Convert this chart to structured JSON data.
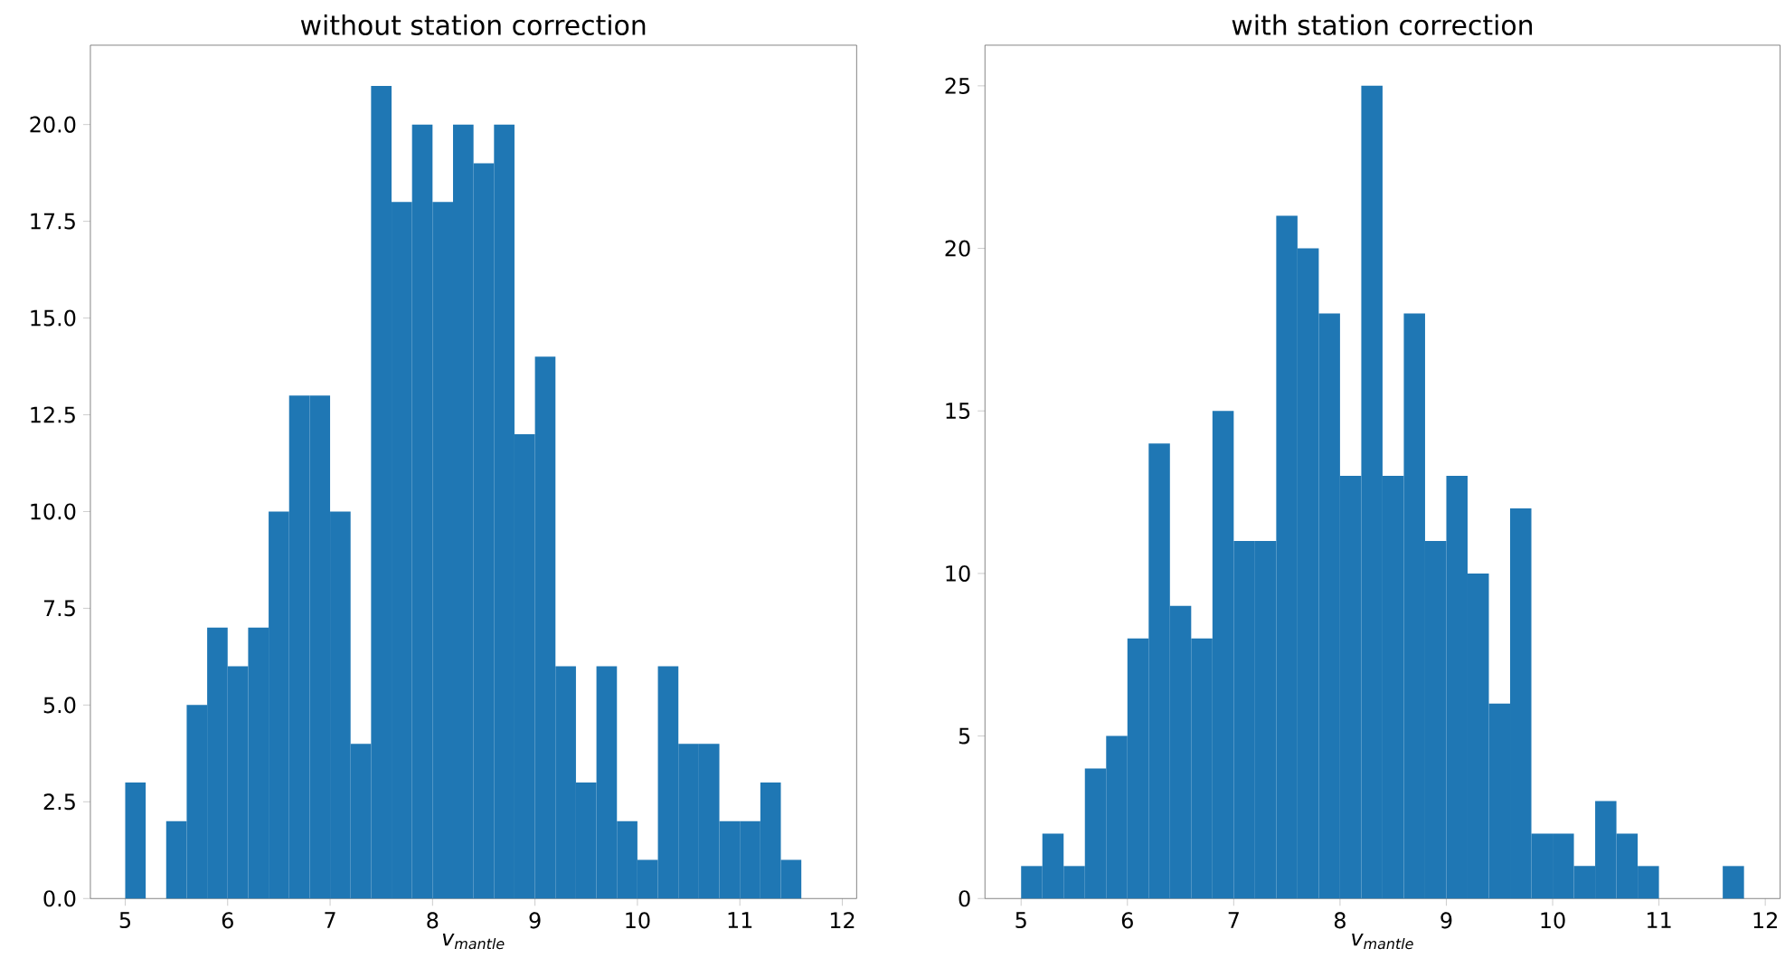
{
  "chart_data": [
    {
      "type": "histogram",
      "title": "without station correction",
      "xlabel": "v$_{mantle}$",
      "color": "#1f77b4",
      "bins": [
        5.0,
        5.2,
        5.4,
        5.6,
        5.8,
        6.0,
        6.2,
        6.4,
        6.6,
        6.8,
        7.0,
        7.2,
        7.4,
        7.6,
        7.8,
        8.0,
        8.2,
        8.4,
        8.6,
        8.8,
        9.0,
        9.2,
        9.4,
        9.6,
        9.8,
        10.0,
        10.2,
        10.4,
        10.6,
        10.8,
        11.0,
        11.2,
        11.4,
        11.6,
        11.8
      ],
      "values": [
        3,
        0,
        2,
        5,
        7,
        6,
        7,
        10,
        13,
        13,
        10,
        4,
        21,
        18,
        20,
        18,
        20,
        19,
        20,
        12,
        14,
        6,
        3,
        6,
        2,
        1,
        6,
        4,
        4,
        2,
        2,
        3,
        1,
        0
      ],
      "xlim": [
        4.66,
        12.14
      ],
      "ylim": [
        0,
        22.05
      ],
      "xticks": [
        5,
        6,
        7,
        8,
        9,
        10,
        11,
        12
      ],
      "yticks": [
        {
          "value": 0,
          "label": "0.0"
        },
        {
          "value": 2.5,
          "label": "2.5"
        },
        {
          "value": 5,
          "label": "5.0"
        },
        {
          "value": 7.5,
          "label": "7.5"
        },
        {
          "value": 10,
          "label": "10.0"
        },
        {
          "value": 12.5,
          "label": "12.5"
        },
        {
          "value": 15,
          "label": "15.0"
        },
        {
          "value": 17.5,
          "label": "17.5"
        },
        {
          "value": 20,
          "label": "20.0"
        }
      ]
    },
    {
      "type": "histogram",
      "title": "with station correction",
      "xlabel": "v$_{mantle}$",
      "color": "#1f77b4",
      "bins": [
        5.0,
        5.2,
        5.4,
        5.6,
        5.8,
        6.0,
        6.2,
        6.4,
        6.6,
        6.8,
        7.0,
        7.2,
        7.4,
        7.6,
        7.8,
        8.0,
        8.2,
        8.4,
        8.6,
        8.8,
        9.0,
        9.2,
        9.4,
        9.6,
        9.8,
        10.0,
        10.2,
        10.4,
        10.6,
        10.8,
        11.0,
        11.2,
        11.4,
        11.6,
        11.8
      ],
      "values": [
        1,
        2,
        1,
        4,
        5,
        8,
        14,
        9,
        8,
        15,
        11,
        11,
        21,
        20,
        18,
        13,
        25,
        13,
        18,
        11,
        13,
        10,
        6,
        12,
        2,
        2,
        1,
        3,
        2,
        1,
        0,
        0,
        0,
        1
      ],
      "xlim": [
        4.66,
        12.14
      ],
      "ylim": [
        0,
        26.25
      ],
      "xticks": [
        5,
        6,
        7,
        8,
        9,
        10,
        11,
        12
      ],
      "yticks": [
        0,
        5,
        10,
        15,
        20,
        25
      ]
    }
  ]
}
